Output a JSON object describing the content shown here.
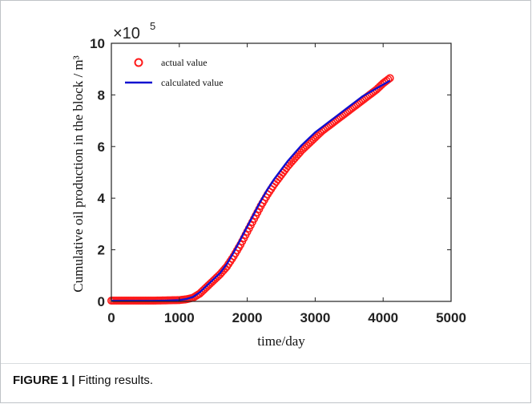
{
  "caption": {
    "figure_label": "FIGURE 1 |",
    "text": "Fitting results."
  },
  "colors": {
    "actual": "#ff1a1a",
    "calculated": "#1010d0",
    "axis": "#222222"
  },
  "chart_data": {
    "type": "line",
    "xlabel": "time/day",
    "ylabel": "Cumulative oil production in the block / m³",
    "y_multiplier": {
      "base": "×10",
      "exponent": "5"
    },
    "xlim": [
      0,
      5000
    ],
    "ylim": [
      0,
      10
    ],
    "x_ticks": [
      0,
      1000,
      2000,
      3000,
      4000,
      5000
    ],
    "y_ticks": [
      0,
      2,
      4,
      6,
      8,
      10
    ],
    "grid": false,
    "legend_placement": "top-left",
    "series": [
      {
        "name": "actual value",
        "style": "markers",
        "x": [
          0,
          200,
          400,
          600,
          800,
          1000,
          1100,
          1200,
          1300,
          1400,
          1500,
          1600,
          1700,
          1800,
          1900,
          2000,
          2100,
          2200,
          2300,
          2400,
          2500,
          2600,
          2700,
          2800,
          2900,
          3000,
          3100,
          3200,
          3300,
          3400,
          3500,
          3600,
          3700,
          3800,
          3900,
          4000,
          4100
        ],
        "y": [
          0.03,
          0.03,
          0.03,
          0.03,
          0.04,
          0.05,
          0.08,
          0.14,
          0.3,
          0.55,
          0.8,
          1.05,
          1.35,
          1.75,
          2.2,
          2.7,
          3.2,
          3.7,
          4.15,
          4.55,
          4.9,
          5.25,
          5.55,
          5.85,
          6.1,
          6.35,
          6.6,
          6.8,
          7.0,
          7.2,
          7.4,
          7.6,
          7.8,
          8.0,
          8.2,
          8.45,
          8.65
        ]
      },
      {
        "name": "calculated value",
        "style": "line",
        "x": [
          0,
          200,
          400,
          600,
          800,
          1000,
          1100,
          1200,
          1300,
          1400,
          1500,
          1600,
          1700,
          1800,
          1900,
          2000,
          2100,
          2200,
          2300,
          2400,
          2500,
          2600,
          2700,
          2800,
          2900,
          3000,
          3100,
          3200,
          3300,
          3400,
          3500,
          3600,
          3700,
          3800,
          3900,
          4000,
          4100
        ],
        "y": [
          0.02,
          0.02,
          0.02,
          0.02,
          0.03,
          0.05,
          0.09,
          0.17,
          0.35,
          0.6,
          0.85,
          1.1,
          1.45,
          1.9,
          2.4,
          2.9,
          3.4,
          3.9,
          4.35,
          4.75,
          5.1,
          5.45,
          5.75,
          6.05,
          6.3,
          6.55,
          6.75,
          6.95,
          7.15,
          7.35,
          7.55,
          7.75,
          7.95,
          8.1,
          8.25,
          8.4,
          8.55
        ]
      }
    ]
  }
}
